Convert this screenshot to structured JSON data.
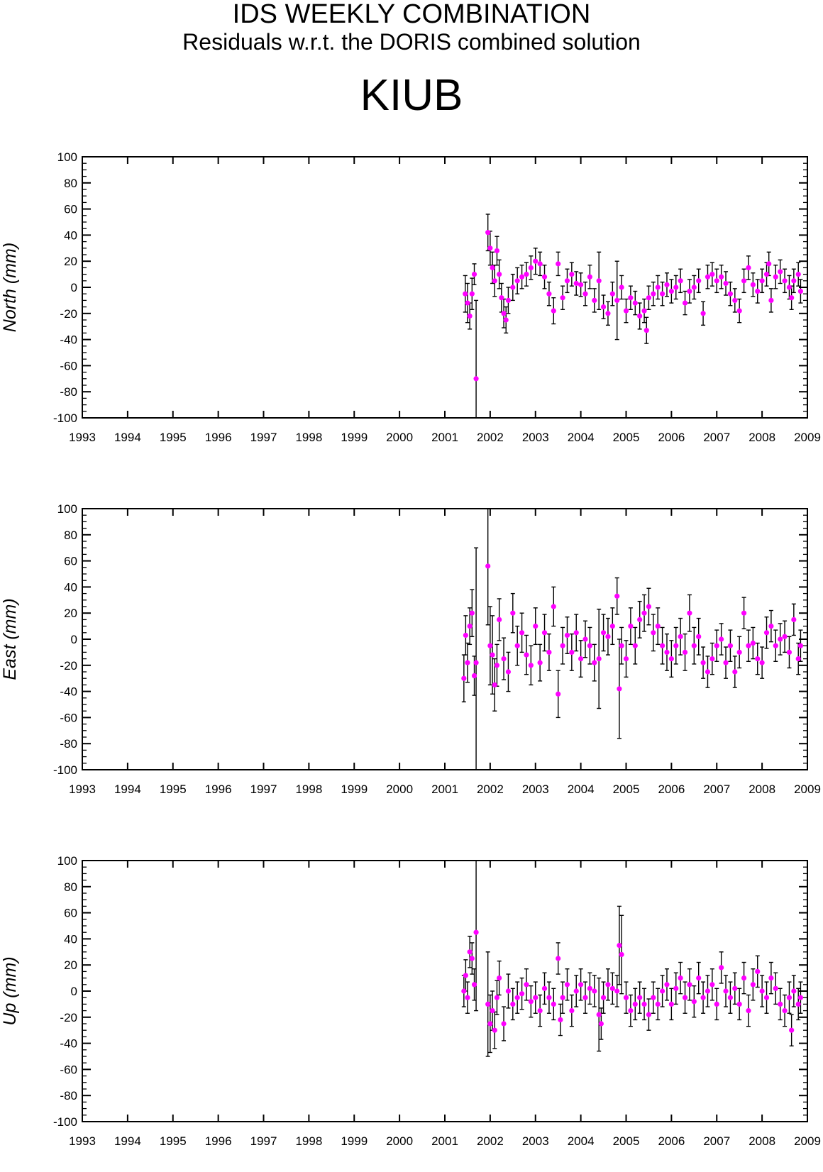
{
  "header": {
    "title": "IDS WEEKLY COMBINATION",
    "subtitle": "Residuals w.r.t. the DORIS combined solution",
    "station": "KIUB"
  },
  "colors": {
    "marker": "#ff00ff",
    "errorbar": "#000000",
    "axis": "#000000"
  },
  "chart_data": [
    {
      "type": "scatter",
      "ylabel": "North (mm)",
      "xlim": [
        1993,
        2009
      ],
      "ylim": [
        -100,
        100
      ],
      "x_ticks": [
        "1993",
        "1994",
        "1995",
        "1996",
        "1997",
        "1998",
        "1999",
        "2000",
        "2001",
        "2002",
        "2003",
        "2004",
        "2005",
        "2006",
        "2007",
        "2008",
        "2009"
      ],
      "y_ticks": [
        "100",
        "80",
        "60",
        "40",
        "20",
        "0",
        "-20",
        "-40",
        "-60",
        "-80",
        "-100"
      ],
      "error_bars": true,
      "points": [
        [
          2001.45,
          -5,
          14
        ],
        [
          2001.5,
          -12,
          15
        ],
        [
          2001.55,
          -22,
          10
        ],
        [
          2001.6,
          -5,
          12
        ],
        [
          2001.65,
          10,
          8
        ],
        [
          2001.69,
          -70,
          60
        ],
        [
          2001.95,
          42,
          14
        ],
        [
          2002.0,
          30,
          13
        ],
        [
          2002.05,
          15,
          12
        ],
        [
          2002.1,
          5,
          12
        ],
        [
          2002.15,
          28,
          11
        ],
        [
          2002.2,
          10,
          11
        ],
        [
          2002.25,
          -8,
          11
        ],
        [
          2002.3,
          -20,
          11
        ],
        [
          2002.35,
          -25,
          10
        ],
        [
          2002.4,
          -10,
          10
        ],
        [
          2002.5,
          0,
          10
        ],
        [
          2002.6,
          5,
          10
        ],
        [
          2002.7,
          8,
          9
        ],
        [
          2002.8,
          10,
          9
        ],
        [
          2002.9,
          15,
          9
        ],
        [
          2003.0,
          20,
          10
        ],
        [
          2003.1,
          18,
          9
        ],
        [
          2003.2,
          8,
          9
        ],
        [
          2003.3,
          -5,
          9
        ],
        [
          2003.4,
          -18,
          10
        ],
        [
          2003.5,
          18,
          9
        ],
        [
          2003.6,
          -8,
          9
        ],
        [
          2003.7,
          5,
          9
        ],
        [
          2003.8,
          10,
          9
        ],
        [
          2003.9,
          3,
          9
        ],
        [
          2004.0,
          2,
          9
        ],
        [
          2004.1,
          -5,
          9
        ],
        [
          2004.2,
          8,
          9
        ],
        [
          2004.3,
          -10,
          9
        ],
        [
          2004.4,
          5,
          22
        ],
        [
          2004.5,
          -15,
          9
        ],
        [
          2004.6,
          -20,
          9
        ],
        [
          2004.7,
          -5,
          9
        ],
        [
          2004.8,
          -10,
          30
        ],
        [
          2004.9,
          0,
          9
        ],
        [
          2005.0,
          -18,
          9
        ],
        [
          2005.1,
          -8,
          9
        ],
        [
          2005.2,
          -12,
          9
        ],
        [
          2005.3,
          -22,
          10
        ],
        [
          2005.4,
          -18,
          9
        ],
        [
          2005.45,
          -33,
          10
        ],
        [
          2005.5,
          -8,
          9
        ],
        [
          2005.6,
          -5,
          9
        ],
        [
          2005.7,
          0,
          9
        ],
        [
          2005.8,
          -5,
          9
        ],
        [
          2005.9,
          2,
          9
        ],
        [
          2006.0,
          -3,
          9
        ],
        [
          2006.1,
          0,
          9
        ],
        [
          2006.2,
          5,
          9
        ],
        [
          2006.3,
          -12,
          9
        ],
        [
          2006.4,
          -3,
          9
        ],
        [
          2006.5,
          0,
          9
        ],
        [
          2006.6,
          5,
          9
        ],
        [
          2006.7,
          -20,
          9
        ],
        [
          2006.8,
          8,
          9
        ],
        [
          2006.9,
          10,
          9
        ],
        [
          2007.0,
          5,
          9
        ],
        [
          2007.1,
          8,
          9
        ],
        [
          2007.2,
          3,
          9
        ],
        [
          2007.3,
          -5,
          9
        ],
        [
          2007.4,
          -10,
          9
        ],
        [
          2007.5,
          -18,
          9
        ],
        [
          2007.6,
          5,
          9
        ],
        [
          2007.7,
          15,
          9
        ],
        [
          2007.8,
          2,
          9
        ],
        [
          2007.9,
          -3,
          9
        ],
        [
          2008.0,
          5,
          9
        ],
        [
          2008.1,
          10,
          9
        ],
        [
          2008.15,
          18,
          9
        ],
        [
          2008.2,
          -10,
          9
        ],
        [
          2008.3,
          8,
          9
        ],
        [
          2008.4,
          12,
          9
        ],
        [
          2008.5,
          5,
          9
        ],
        [
          2008.6,
          0,
          9
        ],
        [
          2008.65,
          -8,
          9
        ],
        [
          2008.7,
          5,
          9
        ],
        [
          2008.8,
          10,
          9
        ],
        [
          2008.85,
          -3,
          9
        ]
      ]
    },
    {
      "type": "scatter",
      "ylabel": "East (mm)",
      "xlim": [
        1993,
        2009
      ],
      "ylim": [
        -100,
        100
      ],
      "x_ticks": [
        "1993",
        "1994",
        "1995",
        "1996",
        "1997",
        "1998",
        "1999",
        "2000",
        "2001",
        "2002",
        "2003",
        "2004",
        "2005",
        "2006",
        "2007",
        "2008",
        "2009"
      ],
      "y_ticks": [
        "100",
        "80",
        "60",
        "40",
        "20",
        "0",
        "-20",
        "-40",
        "-60",
        "-80",
        "-100"
      ],
      "error_bars": true,
      "points": [
        [
          2001.42,
          -30,
          18
        ],
        [
          2001.46,
          3,
          15
        ],
        [
          2001.5,
          -18,
          15
        ],
        [
          2001.55,
          10,
          14
        ],
        [
          2001.6,
          20,
          18
        ],
        [
          2001.65,
          -28,
          15
        ],
        [
          2001.69,
          -18,
          88
        ],
        [
          2001.95,
          56,
          45
        ],
        [
          2002.0,
          -5,
          30
        ],
        [
          2002.05,
          -12,
          30
        ],
        [
          2002.1,
          -35,
          20
        ],
        [
          2002.15,
          -20,
          16
        ],
        [
          2002.2,
          15,
          16
        ],
        [
          2002.3,
          -15,
          16
        ],
        [
          2002.4,
          -25,
          15
        ],
        [
          2002.5,
          20,
          15
        ],
        [
          2002.6,
          -5,
          15
        ],
        [
          2002.7,
          5,
          15
        ],
        [
          2002.8,
          -12,
          15
        ],
        [
          2002.9,
          -20,
          15
        ],
        [
          2003.0,
          10,
          14
        ],
        [
          2003.1,
          -18,
          14
        ],
        [
          2003.2,
          5,
          14
        ],
        [
          2003.3,
          -10,
          14
        ],
        [
          2003.4,
          25,
          15
        ],
        [
          2003.5,
          -42,
          18
        ],
        [
          2003.6,
          -5,
          14
        ],
        [
          2003.7,
          3,
          14
        ],
        [
          2003.8,
          -10,
          14
        ],
        [
          2003.9,
          5,
          14
        ],
        [
          2004.0,
          -15,
          14
        ],
        [
          2004.1,
          0,
          14
        ],
        [
          2004.2,
          -5,
          14
        ],
        [
          2004.3,
          -18,
          14
        ],
        [
          2004.4,
          -15,
          38
        ],
        [
          2004.5,
          5,
          14
        ],
        [
          2004.6,
          2,
          14
        ],
        [
          2004.7,
          10,
          14
        ],
        [
          2004.8,
          33,
          14
        ],
        [
          2004.85,
          -38,
          38
        ],
        [
          2004.9,
          -5,
          14
        ],
        [
          2005.0,
          -15,
          14
        ],
        [
          2005.1,
          10,
          14
        ],
        [
          2005.2,
          -5,
          14
        ],
        [
          2005.3,
          15,
          14
        ],
        [
          2005.4,
          20,
          14
        ],
        [
          2005.5,
          25,
          14
        ],
        [
          2005.6,
          5,
          14
        ],
        [
          2005.7,
          10,
          14
        ],
        [
          2005.8,
          -5,
          14
        ],
        [
          2005.9,
          -10,
          14
        ],
        [
          2006.0,
          -15,
          14
        ],
        [
          2006.1,
          -5,
          14
        ],
        [
          2006.2,
          2,
          14
        ],
        [
          2006.3,
          -10,
          14
        ],
        [
          2006.4,
          20,
          14
        ],
        [
          2006.5,
          -5,
          14
        ],
        [
          2006.6,
          2,
          14
        ],
        [
          2006.7,
          -18,
          12
        ],
        [
          2006.8,
          -25,
          12
        ],
        [
          2006.9,
          -15,
          12
        ],
        [
          2007.0,
          -5,
          12
        ],
        [
          2007.1,
          0,
          12
        ],
        [
          2007.2,
          -18,
          12
        ],
        [
          2007.3,
          -5,
          12
        ],
        [
          2007.4,
          -25,
          12
        ],
        [
          2007.5,
          -10,
          12
        ],
        [
          2007.6,
          20,
          12
        ],
        [
          2007.7,
          -5,
          12
        ],
        [
          2007.8,
          -3,
          12
        ],
        [
          2007.9,
          -15,
          12
        ],
        [
          2008.0,
          -18,
          12
        ],
        [
          2008.1,
          5,
          12
        ],
        [
          2008.2,
          10,
          12
        ],
        [
          2008.3,
          -5,
          12
        ],
        [
          2008.4,
          0,
          12
        ],
        [
          2008.5,
          2,
          12
        ],
        [
          2008.6,
          -10,
          12
        ],
        [
          2008.7,
          15,
          12
        ],
        [
          2008.8,
          -15,
          12
        ],
        [
          2008.85,
          -5,
          12
        ]
      ]
    },
    {
      "type": "scatter",
      "ylabel": "Up (mm)",
      "xlim": [
        1993,
        2009
      ],
      "ylim": [
        -100,
        100
      ],
      "x_ticks": [
        "1993",
        "1994",
        "1995",
        "1996",
        "1997",
        "1998",
        "1999",
        "2000",
        "2001",
        "2002",
        "2003",
        "2004",
        "2005",
        "2006",
        "2007",
        "2008",
        "2009"
      ],
      "y_ticks": [
        "100",
        "80",
        "60",
        "40",
        "20",
        "0",
        "-20",
        "-40",
        "-60",
        "-80",
        "-100"
      ],
      "error_bars": true,
      "points": [
        [
          2001.42,
          0,
          12
        ],
        [
          2001.46,
          12,
          12
        ],
        [
          2001.5,
          -5,
          12
        ],
        [
          2001.55,
          30,
          12
        ],
        [
          2001.6,
          25,
          12
        ],
        [
          2001.65,
          5,
          12
        ],
        [
          2001.69,
          45,
          60
        ],
        [
          2001.95,
          -10,
          40
        ],
        [
          2002.0,
          -25,
          22
        ],
        [
          2002.05,
          -15,
          15
        ],
        [
          2002.1,
          -30,
          14
        ],
        [
          2002.15,
          -5,
          13
        ],
        [
          2002.2,
          10,
          13
        ],
        [
          2002.3,
          -25,
          13
        ],
        [
          2002.4,
          0,
          13
        ],
        [
          2002.5,
          -10,
          12
        ],
        [
          2002.6,
          -5,
          12
        ],
        [
          2002.7,
          -2,
          12
        ],
        [
          2002.8,
          5,
          12
        ],
        [
          2002.9,
          -8,
          12
        ],
        [
          2003.0,
          -5,
          12
        ],
        [
          2003.1,
          -15,
          12
        ],
        [
          2003.2,
          2,
          12
        ],
        [
          2003.3,
          -5,
          12
        ],
        [
          2003.4,
          -10,
          12
        ],
        [
          2003.5,
          25,
          12
        ],
        [
          2003.55,
          -22,
          12
        ],
        [
          2003.6,
          -5,
          12
        ],
        [
          2003.7,
          5,
          12
        ],
        [
          2003.8,
          -15,
          12
        ],
        [
          2003.9,
          0,
          12
        ],
        [
          2004.0,
          5,
          12
        ],
        [
          2004.1,
          -5,
          12
        ],
        [
          2004.2,
          2,
          12
        ],
        [
          2004.3,
          0,
          12
        ],
        [
          2004.4,
          -18,
          28
        ],
        [
          2004.45,
          -25,
          12
        ],
        [
          2004.5,
          -5,
          12
        ],
        [
          2004.6,
          5,
          12
        ],
        [
          2004.7,
          2,
          12
        ],
        [
          2004.8,
          0,
          12
        ],
        [
          2004.85,
          35,
          30
        ],
        [
          2004.9,
          28,
          30
        ],
        [
          2005.0,
          -5,
          12
        ],
        [
          2005.1,
          -15,
          12
        ],
        [
          2005.2,
          -10,
          12
        ],
        [
          2005.3,
          -5,
          12
        ],
        [
          2005.4,
          -10,
          12
        ],
        [
          2005.5,
          -18,
          12
        ],
        [
          2005.6,
          -5,
          12
        ],
        [
          2005.7,
          -10,
          12
        ],
        [
          2005.8,
          0,
          12
        ],
        [
          2005.9,
          5,
          12
        ],
        [
          2006.0,
          -10,
          12
        ],
        [
          2006.1,
          2,
          12
        ],
        [
          2006.2,
          10,
          12
        ],
        [
          2006.3,
          -5,
          12
        ],
        [
          2006.4,
          5,
          12
        ],
        [
          2006.5,
          -8,
          12
        ],
        [
          2006.6,
          10,
          12
        ],
        [
          2006.7,
          -5,
          12
        ],
        [
          2006.8,
          0,
          12
        ],
        [
          2006.9,
          5,
          12
        ],
        [
          2007.0,
          -10,
          12
        ],
        [
          2007.1,
          18,
          12
        ],
        [
          2007.2,
          0,
          12
        ],
        [
          2007.3,
          -5,
          12
        ],
        [
          2007.4,
          2,
          12
        ],
        [
          2007.5,
          -10,
          12
        ],
        [
          2007.6,
          10,
          12
        ],
        [
          2007.7,
          -15,
          12
        ],
        [
          2007.8,
          5,
          12
        ],
        [
          2007.9,
          15,
          12
        ],
        [
          2008.0,
          0,
          12
        ],
        [
          2008.1,
          -5,
          12
        ],
        [
          2008.2,
          10,
          12
        ],
        [
          2008.3,
          2,
          12
        ],
        [
          2008.4,
          -10,
          12
        ],
        [
          2008.5,
          -15,
          12
        ],
        [
          2008.6,
          -5,
          12
        ],
        [
          2008.65,
          -30,
          12
        ],
        [
          2008.7,
          0,
          12
        ],
        [
          2008.8,
          -10,
          12
        ],
        [
          2008.85,
          -5,
          12
        ]
      ]
    }
  ]
}
